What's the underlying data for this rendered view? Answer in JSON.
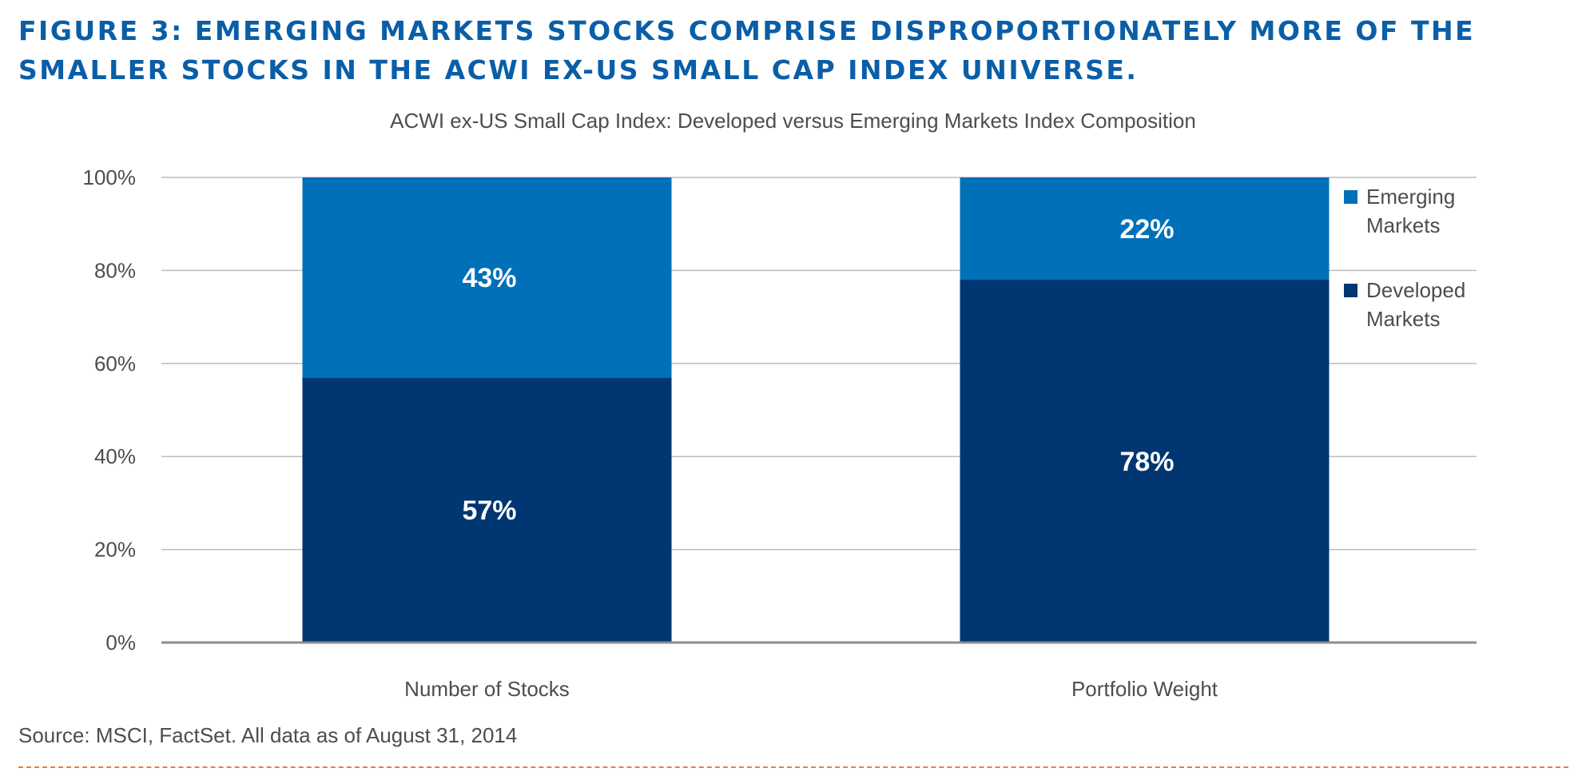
{
  "figure": {
    "title": "FIGURE 3: EMERGING MARKETS STOCKS COMPRISE DISPROPORTIONATELY MORE OF THE SMALLER STOCKS IN THE ACWI EX-US SMALL CAP INDEX UNIVERSE.",
    "source": "Source: MSCI, FactSet. All data as of August 31, 2014"
  },
  "chart_data": {
    "type": "bar",
    "stacked": true,
    "subtitle": "ACWI ex-US Small Cap Index: Developed versus Emerging Markets Index Composition",
    "categories": [
      "Number of Stocks",
      "Portfolio Weight"
    ],
    "series": [
      {
        "name": "Developed Markets",
        "values": [
          57,
          78
        ],
        "labels": [
          "57%",
          "78%"
        ],
        "color": "#003671"
      },
      {
        "name": "Emerging Markets",
        "values": [
          43,
          22
        ],
        "labels": [
          "43%",
          "22%"
        ],
        "color": "#0070b9"
      }
    ],
    "yticks": [
      "0%",
      "20%",
      "40%",
      "60%",
      "80%",
      "100%"
    ],
    "ylim": [
      0,
      100
    ],
    "grid": true,
    "legend_position": "right",
    "legend_order": [
      "Emerging Markets",
      "Developed Markets"
    ],
    "legend_lines": [
      [
        "Emerging",
        "Markets"
      ],
      [
        "Developed",
        "Markets"
      ]
    ]
  },
  "colors": {
    "title": "#0a5ea8",
    "text": "#4d4d4d",
    "gridline": "#bdbdbd",
    "axis": "#8c8c8c",
    "footer_rule": "#ee7d3c"
  }
}
